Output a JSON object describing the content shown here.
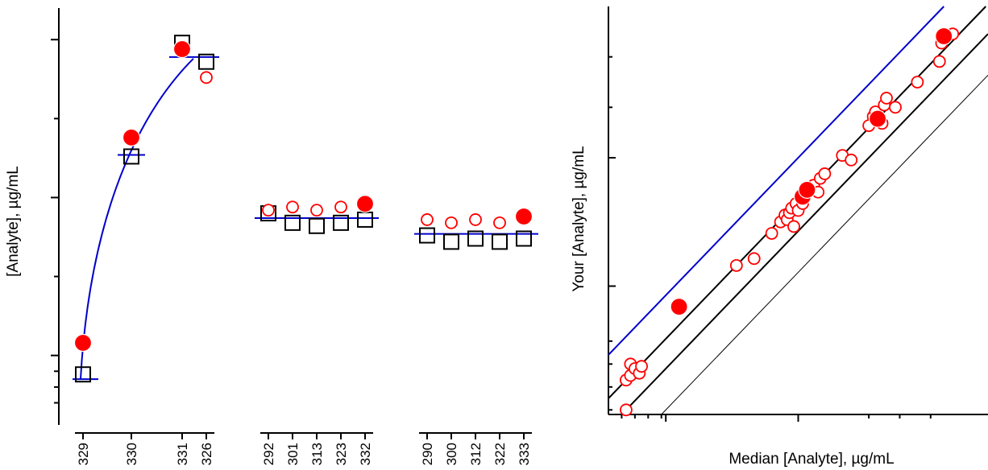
{
  "colors": {
    "axis": "#000000",
    "box": "#000000",
    "fit_line": "#0000cc",
    "marker": "#ff0000",
    "open_marker_fill": "#ffffff",
    "background": "#ffffff"
  },
  "chart_data": [
    {
      "type": "scatter",
      "panel": "left",
      "ylabel": "[Analyte], µg/mL",
      "xlabel": "",
      "y_range": [
        -2.2,
        11.0
      ],
      "y_major_ticks": [
        0,
        5,
        10
      ],
      "y_minor_ticks": [
        -1.5,
        -1.0,
        -0.5,
        2.5,
        7.5
      ],
      "grid": false,
      "groups": [
        {
          "group": 1,
          "samples": [
            "329",
            "330",
            "331",
            "326"
          ],
          "box_values": [
            -0.6,
            6.3,
            9.9,
            9.3
          ],
          "participant_values": [
            0.4,
            6.9,
            9.7,
            8.8
          ],
          "highlighted_values": [
            0.4,
            6.9,
            9.7,
            null
          ],
          "fit_line": {
            "shape": "curve",
            "levels": [
              -0.75,
              6.35,
              9.45,
              9.45
            ]
          }
        },
        {
          "group": 2,
          "samples": [
            "292",
            "301",
            "313",
            "323",
            "332"
          ],
          "box_values": [
            4.5,
            4.2,
            4.1,
            4.2,
            4.3
          ],
          "participant_values": [
            4.6,
            4.7,
            4.6,
            4.7,
            4.8
          ],
          "highlighted_values": [
            null,
            null,
            null,
            null,
            4.8
          ],
          "fit_line": {
            "shape": "flat",
            "levels": [
              4.35
            ]
          }
        },
        {
          "group": 3,
          "samples": [
            "290",
            "300",
            "312",
            "322",
            "333"
          ],
          "box_values": [
            3.8,
            3.6,
            3.7,
            3.6,
            3.7
          ],
          "participant_values": [
            4.3,
            4.2,
            4.3,
            4.2,
            4.4
          ],
          "highlighted_values": [
            null,
            null,
            null,
            null,
            4.4
          ],
          "fit_line": {
            "shape": "flat",
            "levels": [
              3.85
            ]
          }
        }
      ]
    },
    {
      "type": "scatter",
      "panel": "right",
      "xlabel": "Median [Analyte], µg/mL",
      "ylabel": "Your [Analyte], µg/mL",
      "x_range": [
        -0.3,
        8.3
      ],
      "y_range": [
        -0.3,
        8.6
      ],
      "x_major_ticks": [
        1,
        4
      ],
      "x_minor_ticks": [
        0,
        0.3,
        0.6,
        0.9,
        5.6,
        6.3,
        7.0
      ],
      "y_major_ticks": [
        2.5,
        5.3
      ],
      "y_minor_ticks": [
        -0.2,
        0.3,
        0.8,
        1.3,
        6.4,
        7.5
      ],
      "grid": false,
      "reference_lines": [
        {
          "name": "upper-limit",
          "color": "#0000cc",
          "intercept": 1.3,
          "slope": 1.0
        },
        {
          "name": "identity",
          "color": "#000000",
          "intercept": 0.35,
          "slope": 1.0
        },
        {
          "name": "lower-limit",
          "color": "#000000",
          "intercept": -0.3,
          "slope": 1.0
        },
        {
          "name": "outer-limit",
          "color": "#000000",
          "intercept": -1.2,
          "slope": 1.0
        }
      ],
      "points": [
        {
          "x": 0.1,
          "y": -0.2
        },
        {
          "x": 0.1,
          "y": 0.45
        },
        {
          "x": 0.2,
          "y": 0.55
        },
        {
          "x": 0.2,
          "y": 0.8
        },
        {
          "x": 0.3,
          "y": 0.7
        },
        {
          "x": 0.4,
          "y": 0.6
        },
        {
          "x": 0.45,
          "y": 0.75
        },
        {
          "x": 2.6,
          "y": 2.95
        },
        {
          "x": 3.0,
          "y": 3.1
        },
        {
          "x": 3.4,
          "y": 3.65
        },
        {
          "x": 3.6,
          "y": 3.9
        },
        {
          "x": 3.7,
          "y": 4.05
        },
        {
          "x": 3.75,
          "y": 3.95
        },
        {
          "x": 3.8,
          "y": 4.1
        },
        {
          "x": 3.85,
          "y": 4.2
        },
        {
          "x": 3.9,
          "y": 3.8
        },
        {
          "x": 3.95,
          "y": 4.3
        },
        {
          "x": 4.0,
          "y": 4.15
        },
        {
          "x": 4.1,
          "y": 4.3
        },
        {
          "x": 4.15,
          "y": 4.45
        },
        {
          "x": 4.2,
          "y": 4.55
        },
        {
          "x": 4.35,
          "y": 4.7
        },
        {
          "x": 4.45,
          "y": 4.55
        },
        {
          "x": 4.5,
          "y": 4.85
        },
        {
          "x": 4.6,
          "y": 4.95
        },
        {
          "x": 5.0,
          "y": 5.35
        },
        {
          "x": 5.2,
          "y": 5.25
        },
        {
          "x": 5.6,
          "y": 6.0
        },
        {
          "x": 5.7,
          "y": 6.2
        },
        {
          "x": 5.75,
          "y": 6.3
        },
        {
          "x": 5.9,
          "y": 6.05
        },
        {
          "x": 5.95,
          "y": 6.45
        },
        {
          "x": 6.0,
          "y": 6.6
        },
        {
          "x": 6.2,
          "y": 6.4
        },
        {
          "x": 6.7,
          "y": 6.95
        },
        {
          "x": 7.2,
          "y": 7.4
        },
        {
          "x": 7.25,
          "y": 7.8
        },
        {
          "x": 7.5,
          "y": 8.0
        }
      ],
      "highlighted_points": [
        {
          "x": 1.3,
          "y": 2.05
        },
        {
          "x": 4.1,
          "y": 4.45
        },
        {
          "x": 4.2,
          "y": 4.6
        },
        {
          "x": 5.8,
          "y": 6.15
        },
        {
          "x": 7.3,
          "y": 7.95
        }
      ]
    }
  ]
}
